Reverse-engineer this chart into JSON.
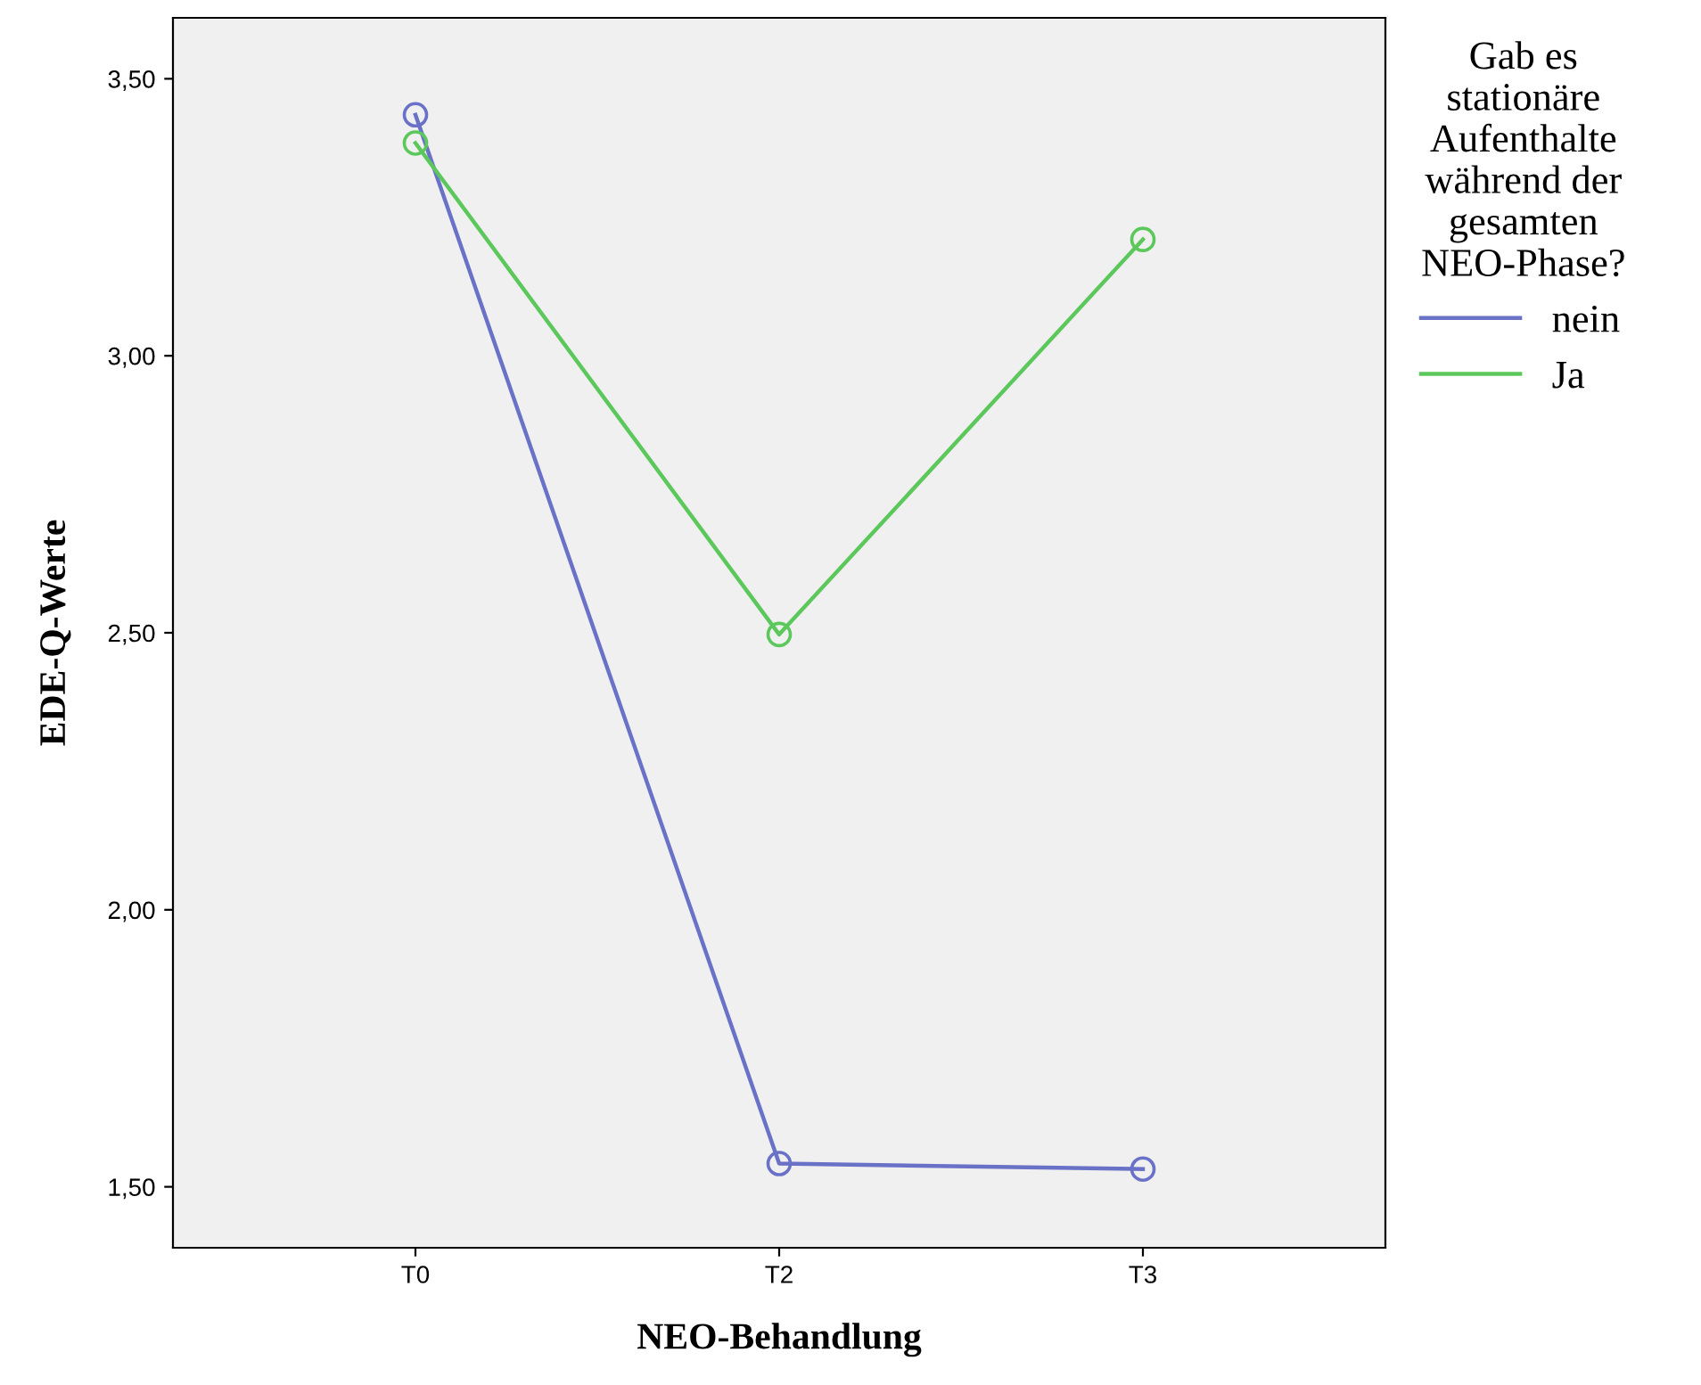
{
  "chart_data": {
    "type": "line",
    "xlabel": "NEO-Behandlung",
    "ylabel": "EDE-Q-Werte",
    "legend_title": "Gab es\nstationäre\nAufenthalte\nwährend der\ngesamten\nNEO-Phase?",
    "legend": "right",
    "marker": "circle",
    "line_style": "solid",
    "grid": false,
    "categories": [
      "T0",
      "T2",
      "T3"
    ],
    "ylim": [
      1.39,
      3.61
    ],
    "yticks": [
      {
        "value": 1.5,
        "label": "1,50"
      },
      {
        "value": 2.0,
        "label": "2,00"
      },
      {
        "value": 2.5,
        "label": "2,50"
      },
      {
        "value": 3.0,
        "label": "3,00"
      },
      {
        "value": 3.5,
        "label": "3,50"
      }
    ],
    "series": [
      {
        "name": "nein",
        "color": "#6a72c8",
        "values": [
          3.435,
          1.542,
          1.532
        ]
      },
      {
        "name": "Ja",
        "color": "#5cc85c",
        "values": [
          3.384,
          2.497,
          3.21
        ]
      }
    ]
  }
}
